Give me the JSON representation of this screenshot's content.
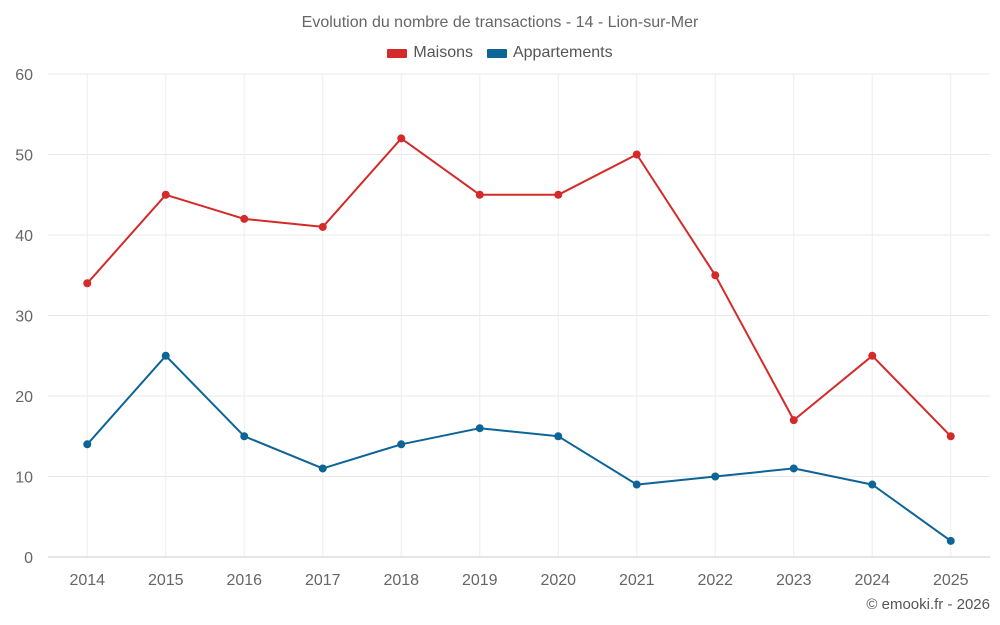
{
  "chart_data": {
    "type": "line",
    "title": "Evolution du nombre de transactions - 14 - Lion-sur-Mer",
    "categories": [
      "2014",
      "2015",
      "2016",
      "2017",
      "2018",
      "2019",
      "2020",
      "2021",
      "2022",
      "2023",
      "2024",
      "2025"
    ],
    "series": [
      {
        "name": "Maisons",
        "color": "#d42a2a",
        "values": [
          34,
          45,
          42,
          41,
          52,
          45,
          45,
          50,
          35,
          17,
          25,
          15
        ]
      },
      {
        "name": "Appartements",
        "color": "#0d6497",
        "values": [
          14,
          25,
          15,
          11,
          14,
          16,
          15,
          9,
          10,
          11,
          9,
          2
        ]
      }
    ],
    "ylim": [
      0,
      60
    ],
    "yticks": [
      0,
      10,
      20,
      30,
      40,
      50,
      60
    ],
    "xlabel": "",
    "ylabel": "",
    "grid": true,
    "legend_position": "top-center"
  },
  "credit": "© emooki.fr - 2026"
}
